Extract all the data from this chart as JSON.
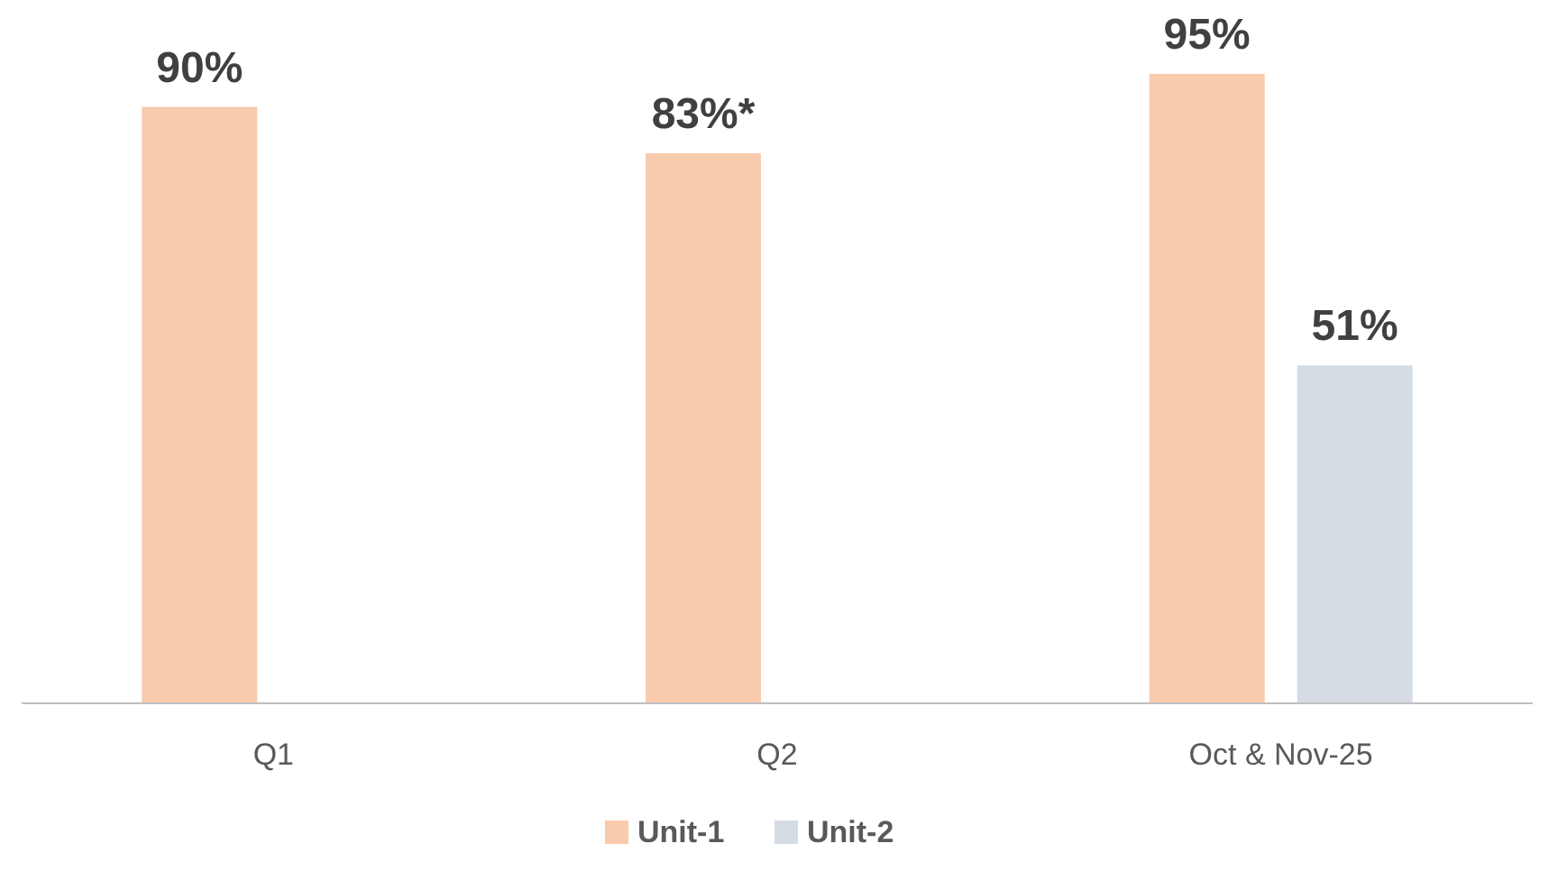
{
  "chart_data": {
    "type": "bar",
    "categories": [
      "Q1",
      "Q2",
      "Oct & Nov-25"
    ],
    "series": [
      {
        "name": "Unit-1",
        "color": "#f8cbad",
        "values": [
          90,
          83,
          95
        ],
        "value_labels": [
          "90%",
          "83%*",
          "95%"
        ]
      },
      {
        "name": "Unit-2",
        "color": "#d6dce4",
        "values": [
          null,
          null,
          51
        ],
        "value_labels": [
          null,
          null,
          "51%"
        ]
      }
    ],
    "legend": "bottom"
  }
}
